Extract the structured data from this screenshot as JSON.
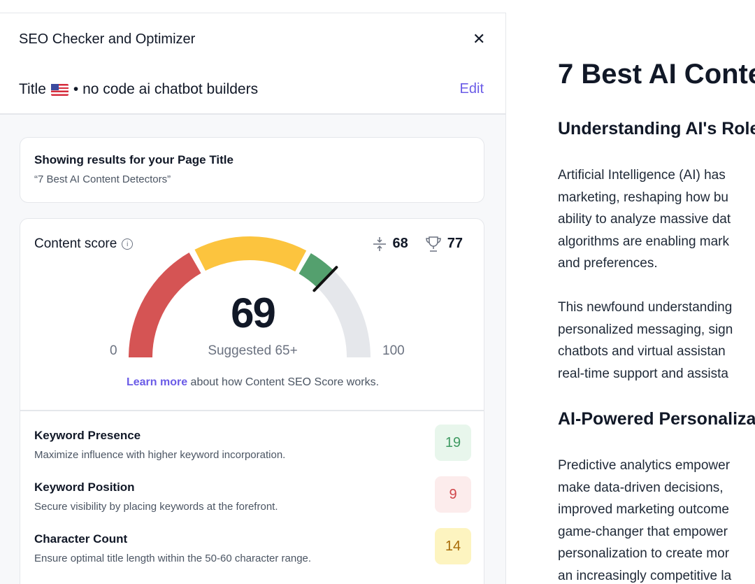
{
  "panel": {
    "title": "SEO Checker and Optimizer",
    "title_label": "Title",
    "keyword": "• no code ai chatbot builders",
    "edit": "Edit",
    "results": {
      "heading": "Showing results for your Page Title",
      "page_title": "“7 Best AI Content Detectors”"
    },
    "score": {
      "label": "Content score",
      "avg": "68",
      "top": "77",
      "value": "69",
      "value_fraction": 0.69,
      "suggested": "Suggested 65+",
      "min": "0",
      "max": "100",
      "learn_more": "Learn more",
      "learn_rest": " about how Content SEO Score works.",
      "colors": {
        "red": "#d55454",
        "yellow": "#fcc43e",
        "green": "#54a06e",
        "gray": "#e5e7eb"
      }
    },
    "items": [
      {
        "title": "Keyword Presence",
        "desc": "Maximize influence with higher keyword incorporation.",
        "score": "19",
        "color": "#3f9a62",
        "bg": "#e8f6ec"
      },
      {
        "title": "Keyword Position",
        "desc": "Secure visibility by placing keywords at the forefront.",
        "score": "9",
        "color": "#d0464a",
        "bg": "#fcecec"
      },
      {
        "title": "Character Count",
        "desc": "Ensure optimal title length within the 50-60 character range.",
        "score": "14",
        "color": "#a86a06",
        "bg": "#fdf4c0"
      }
    ]
  },
  "article": {
    "h1": "7 Best AI Conte",
    "h2a": "Understanding AI's Role",
    "p1": [
      "Artificial Intelligence (AI) has",
      "marketing, reshaping how bu",
      "ability to analyze massive dat",
      "algorithms are enabling mark",
      "and preferences."
    ],
    "p2": [
      "This newfound understanding",
      "personalized messaging, sign",
      "chatbots and virtual assistan",
      "real-time support and assista"
    ],
    "h2b": "AI-Powered Personaliza",
    "p3": [
      "Predictive analytics empower",
      "make data-driven decisions,",
      "improved marketing outcome",
      "game-changer that empower",
      "personalization to create mor",
      "an increasingly competitive la"
    ]
  }
}
